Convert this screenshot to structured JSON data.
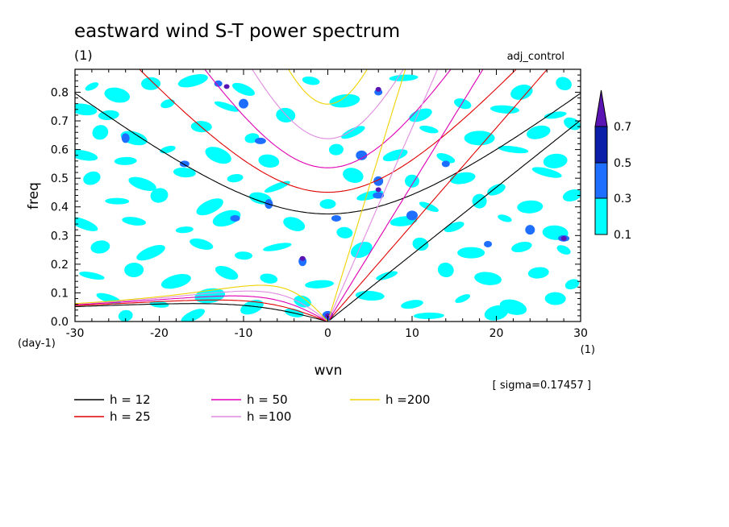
{
  "chart_data": {
    "type": "heatmap",
    "title": "eastward wind S-T power spectrum",
    "title_unit": "(1)",
    "case_label": "adj_control",
    "xlabel": "wvn",
    "x_unit": "(1)",
    "ylabel": "freq",
    "y_unit": "(day-1)",
    "xlim": [
      -30,
      30
    ],
    "ylim": [
      0,
      0.88
    ],
    "x_ticks": [
      -30,
      -20,
      -10,
      0,
      10,
      20,
      30
    ],
    "x_tick_labels": [
      "-30",
      "-20",
      "-10",
      "0",
      "10",
      "20",
      "30"
    ],
    "y_ticks": [
      0,
      0.1,
      0.2,
      0.3,
      0.4,
      0.5,
      0.6,
      0.7,
      0.8
    ],
    "y_tick_labels": [
      "0.0",
      "0.1",
      "0.2",
      "0.3",
      "0.4",
      "0.5",
      "0.6",
      "0.7",
      "0.8"
    ],
    "sigma_text": "[ sigma=0.17457 ]",
    "shading": {
      "levels": [
        0.1,
        0.3,
        0.5,
        0.7
      ],
      "level_labels": [
        "0.1",
        "0.3",
        "0.5",
        "0.7"
      ],
      "colors": [
        "#00ffff",
        "#1e6eff",
        "#0a1eaa",
        "#5a14b4"
      ]
    },
    "dispersion_curves": [
      {
        "label": "h = 12",
        "h": 12,
        "color": "#000000"
      },
      {
        "label": "h = 25",
        "h": 25,
        "color": "#e00000"
      },
      {
        "label": "h = 50",
        "h": 50,
        "color": "#e000b4"
      },
      {
        "label": "h =100",
        "h": 100,
        "color": "#e08ce0"
      },
      {
        "label": "h =200",
        "h": 200,
        "color": "#f0d200"
      }
    ],
    "cyan_blobs": [
      [
        -28,
        0.82
      ],
      [
        -25,
        0.79
      ],
      [
        -21,
        0.83
      ],
      [
        -16,
        0.84
      ],
      [
        -10,
        0.81
      ],
      [
        -2,
        0.84
      ],
      [
        9,
        0.85
      ],
      [
        23,
        0.8
      ],
      [
        28,
        0.83
      ],
      [
        -29,
        0.74
      ],
      [
        -26,
        0.72
      ],
      [
        -19,
        0.76
      ],
      [
        -12,
        0.75
      ],
      [
        -5,
        0.72
      ],
      [
        2,
        0.77
      ],
      [
        11,
        0.72
      ],
      [
        16,
        0.76
      ],
      [
        21,
        0.74
      ],
      [
        27,
        0.72
      ],
      [
        -27,
        0.66
      ],
      [
        -23,
        0.64
      ],
      [
        -15,
        0.68
      ],
      [
        -9,
        0.64
      ],
      [
        3,
        0.66
      ],
      [
        12,
        0.67
      ],
      [
        18,
        0.64
      ],
      [
        25,
        0.66
      ],
      [
        29,
        0.69
      ],
      [
        -29,
        0.58
      ],
      [
        -24,
        0.56
      ],
      [
        -19,
        0.6
      ],
      [
        -13,
        0.58
      ],
      [
        -7,
        0.56
      ],
      [
        1,
        0.6
      ],
      [
        8,
        0.58
      ],
      [
        14,
        0.57
      ],
      [
        22,
        0.6
      ],
      [
        27,
        0.56
      ],
      [
        -28,
        0.5
      ],
      [
        -22,
        0.48
      ],
      [
        -17,
        0.52
      ],
      [
        -11,
        0.5
      ],
      [
        -6,
        0.47
      ],
      [
        3,
        0.51
      ],
      [
        10,
        0.49
      ],
      [
        16,
        0.5
      ],
      [
        20,
        0.46
      ],
      [
        26,
        0.52
      ],
      [
        -25,
        0.42
      ],
      [
        -20,
        0.44
      ],
      [
        -14,
        0.4
      ],
      [
        -8,
        0.43
      ],
      [
        0,
        0.41
      ],
      [
        5,
        0.44
      ],
      [
        12,
        0.4
      ],
      [
        18,
        0.42
      ],
      [
        24,
        0.4
      ],
      [
        29,
        0.44
      ],
      [
        -29,
        0.34
      ],
      [
        -23,
        0.35
      ],
      [
        -17,
        0.32
      ],
      [
        -12,
        0.36
      ],
      [
        -4,
        0.34
      ],
      [
        2,
        0.31
      ],
      [
        9,
        0.35
      ],
      [
        15,
        0.33
      ],
      [
        21,
        0.36
      ],
      [
        27,
        0.31
      ],
      [
        -27,
        0.26
      ],
      [
        -21,
        0.24
      ],
      [
        -15,
        0.27
      ],
      [
        -10,
        0.23
      ],
      [
        -6,
        0.26
      ],
      [
        4,
        0.25
      ],
      [
        11,
        0.27
      ],
      [
        17,
        0.24
      ],
      [
        23,
        0.26
      ],
      [
        28,
        0.25
      ],
      [
        -28,
        0.16
      ],
      [
        -23,
        0.18
      ],
      [
        -18,
        0.14
      ],
      [
        -12,
        0.17
      ],
      [
        -7,
        0.15
      ],
      [
        -1,
        0.13
      ],
      [
        7,
        0.16
      ],
      [
        14,
        0.18
      ],
      [
        19,
        0.15
      ],
      [
        25,
        0.17
      ],
      [
        29,
        0.13
      ],
      [
        -26,
        0.08
      ],
      [
        -20,
        0.06
      ],
      [
        -14,
        0.09
      ],
      [
        -9,
        0.05
      ],
      [
        -3,
        0.07
      ],
      [
        5,
        0.09
      ],
      [
        10,
        0.06
      ],
      [
        16,
        0.08
      ],
      [
        22,
        0.05
      ],
      [
        27,
        0.08
      ],
      [
        -24,
        0.02
      ],
      [
        -16,
        0.02
      ],
      [
        -4,
        0.03
      ],
      [
        12,
        0.02
      ],
      [
        20,
        0.03
      ]
    ],
    "blue_spots": [
      [
        -13,
        0.83
      ],
      [
        -10,
        0.76
      ],
      [
        -8,
        0.63
      ],
      [
        -3,
        0.21
      ],
      [
        1,
        0.36
      ],
      [
        4,
        0.58
      ],
      [
        6,
        0.8
      ],
      [
        6,
        0.49
      ],
      [
        6,
        0.44
      ],
      [
        -7,
        0.41
      ],
      [
        -11,
        0.36
      ],
      [
        10,
        0.37
      ],
      [
        19,
        0.27
      ],
      [
        24,
        0.32
      ],
      [
        28,
        0.29
      ],
      [
        -24,
        0.64
      ],
      [
        -17,
        0.55
      ],
      [
        0,
        0.02
      ],
      [
        14,
        0.55
      ]
    ],
    "dark_spots": [
      [
        -12,
        0.82
      ],
      [
        -3,
        0.22
      ],
      [
        6,
        0.81
      ],
      [
        6,
        0.46
      ],
      [
        28,
        0.29
      ],
      [
        0,
        0.02
      ]
    ]
  }
}
